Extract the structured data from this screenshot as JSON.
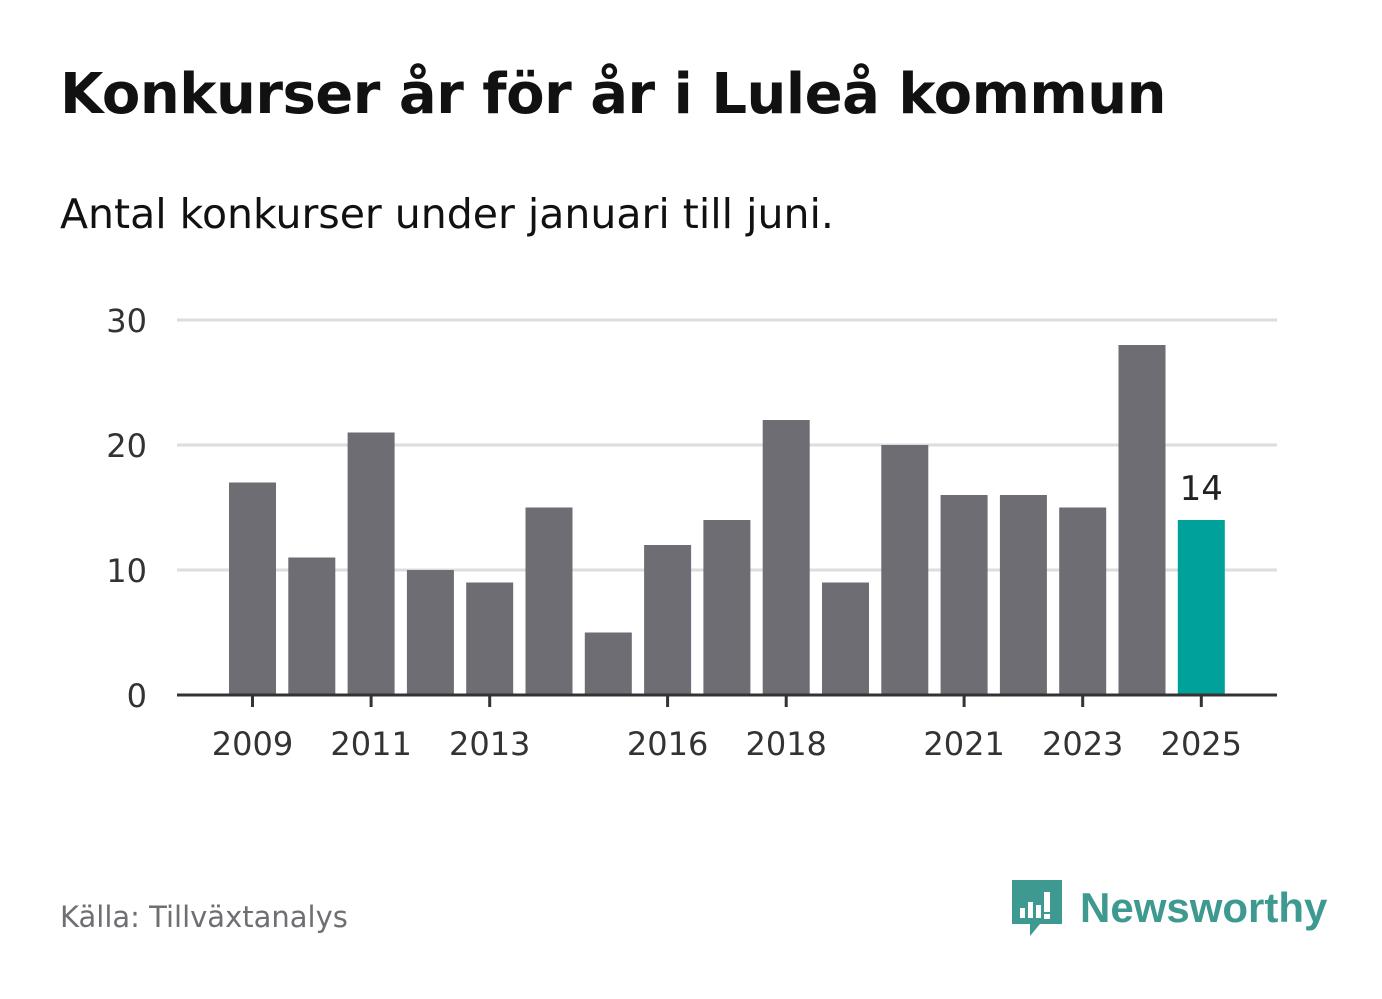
{
  "title": "Konkurser år för år i Luleå kommun",
  "subtitle": "Antal konkurser under januari till juni.",
  "source": "Källa: Tillväxtanalys",
  "brand": "Newsworthy",
  "colors": {
    "bar": "#6e6d73",
    "highlight": "#00a19a",
    "grid": "#dddddd",
    "axis": "#333333",
    "brand": "#3e9a90"
  },
  "chart_data": {
    "type": "bar",
    "x": [
      2009,
      2010,
      2011,
      2012,
      2013,
      2014,
      2015,
      2016,
      2017,
      2018,
      2019,
      2020,
      2021,
      2022,
      2023,
      2024,
      2025
    ],
    "values": [
      17,
      11,
      21,
      10,
      9,
      15,
      5,
      12,
      14,
      22,
      9,
      20,
      16,
      16,
      15,
      28,
      14
    ],
    "x_tick_labels": [
      "2009",
      "2011",
      "2013",
      "2016",
      "2018",
      "2021",
      "2023",
      "2025"
    ],
    "y_ticks": [
      0,
      10,
      20,
      30
    ],
    "ylim": [
      0,
      30
    ],
    "highlight": {
      "x": 2025,
      "label": "14"
    },
    "grid": true,
    "xlabel": "",
    "ylabel": ""
  }
}
